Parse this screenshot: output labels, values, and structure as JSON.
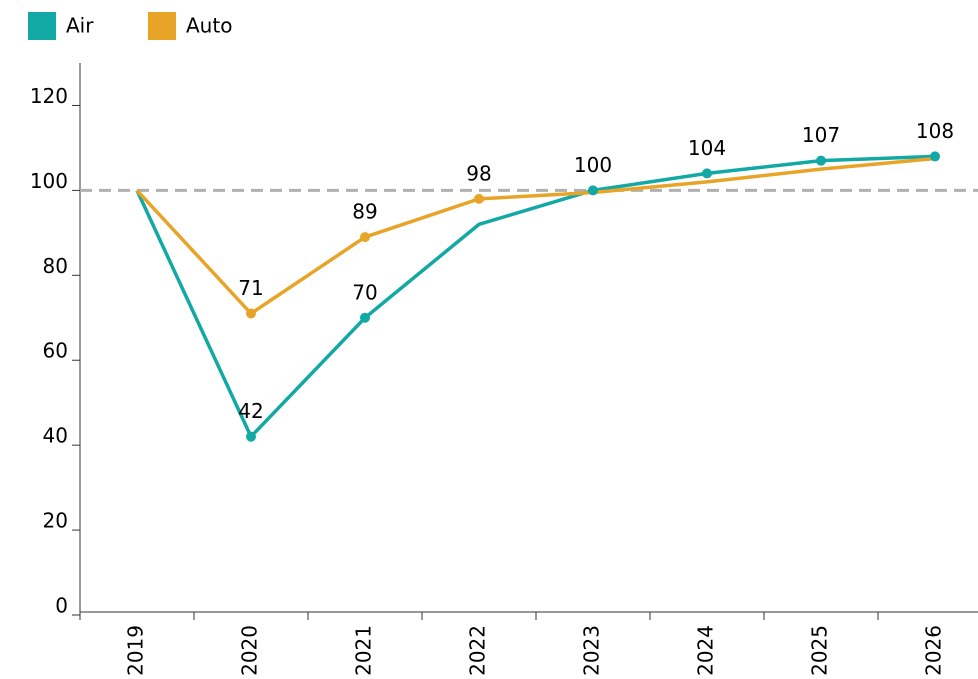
{
  "chart_data": {
    "type": "line",
    "categories": [
      "2019",
      "2020",
      "2021",
      "2022",
      "2023",
      "2024",
      "2025",
      "2026"
    ],
    "series": [
      {
        "name": "Air",
        "color": "#12a8a4",
        "values": [
          100,
          42,
          70,
          92,
          100,
          104,
          107,
          108
        ],
        "value_labels": [
          null,
          "42",
          "70",
          null,
          "100",
          "104",
          "107",
          "108"
        ]
      },
      {
        "name": "Auto",
        "color": "#e8a427",
        "values": [
          100,
          71,
          89,
          98,
          99.5,
          102,
          105,
          107.5
        ],
        "value_labels": [
          null,
          "71",
          "89",
          "98",
          null,
          null,
          null,
          null
        ]
      }
    ],
    "ylim": [
      0,
      130
    ],
    "yticks": [
      0,
      20,
      40,
      60,
      80,
      100,
      120
    ],
    "reference_line": 100,
    "legend": "top-left"
  }
}
